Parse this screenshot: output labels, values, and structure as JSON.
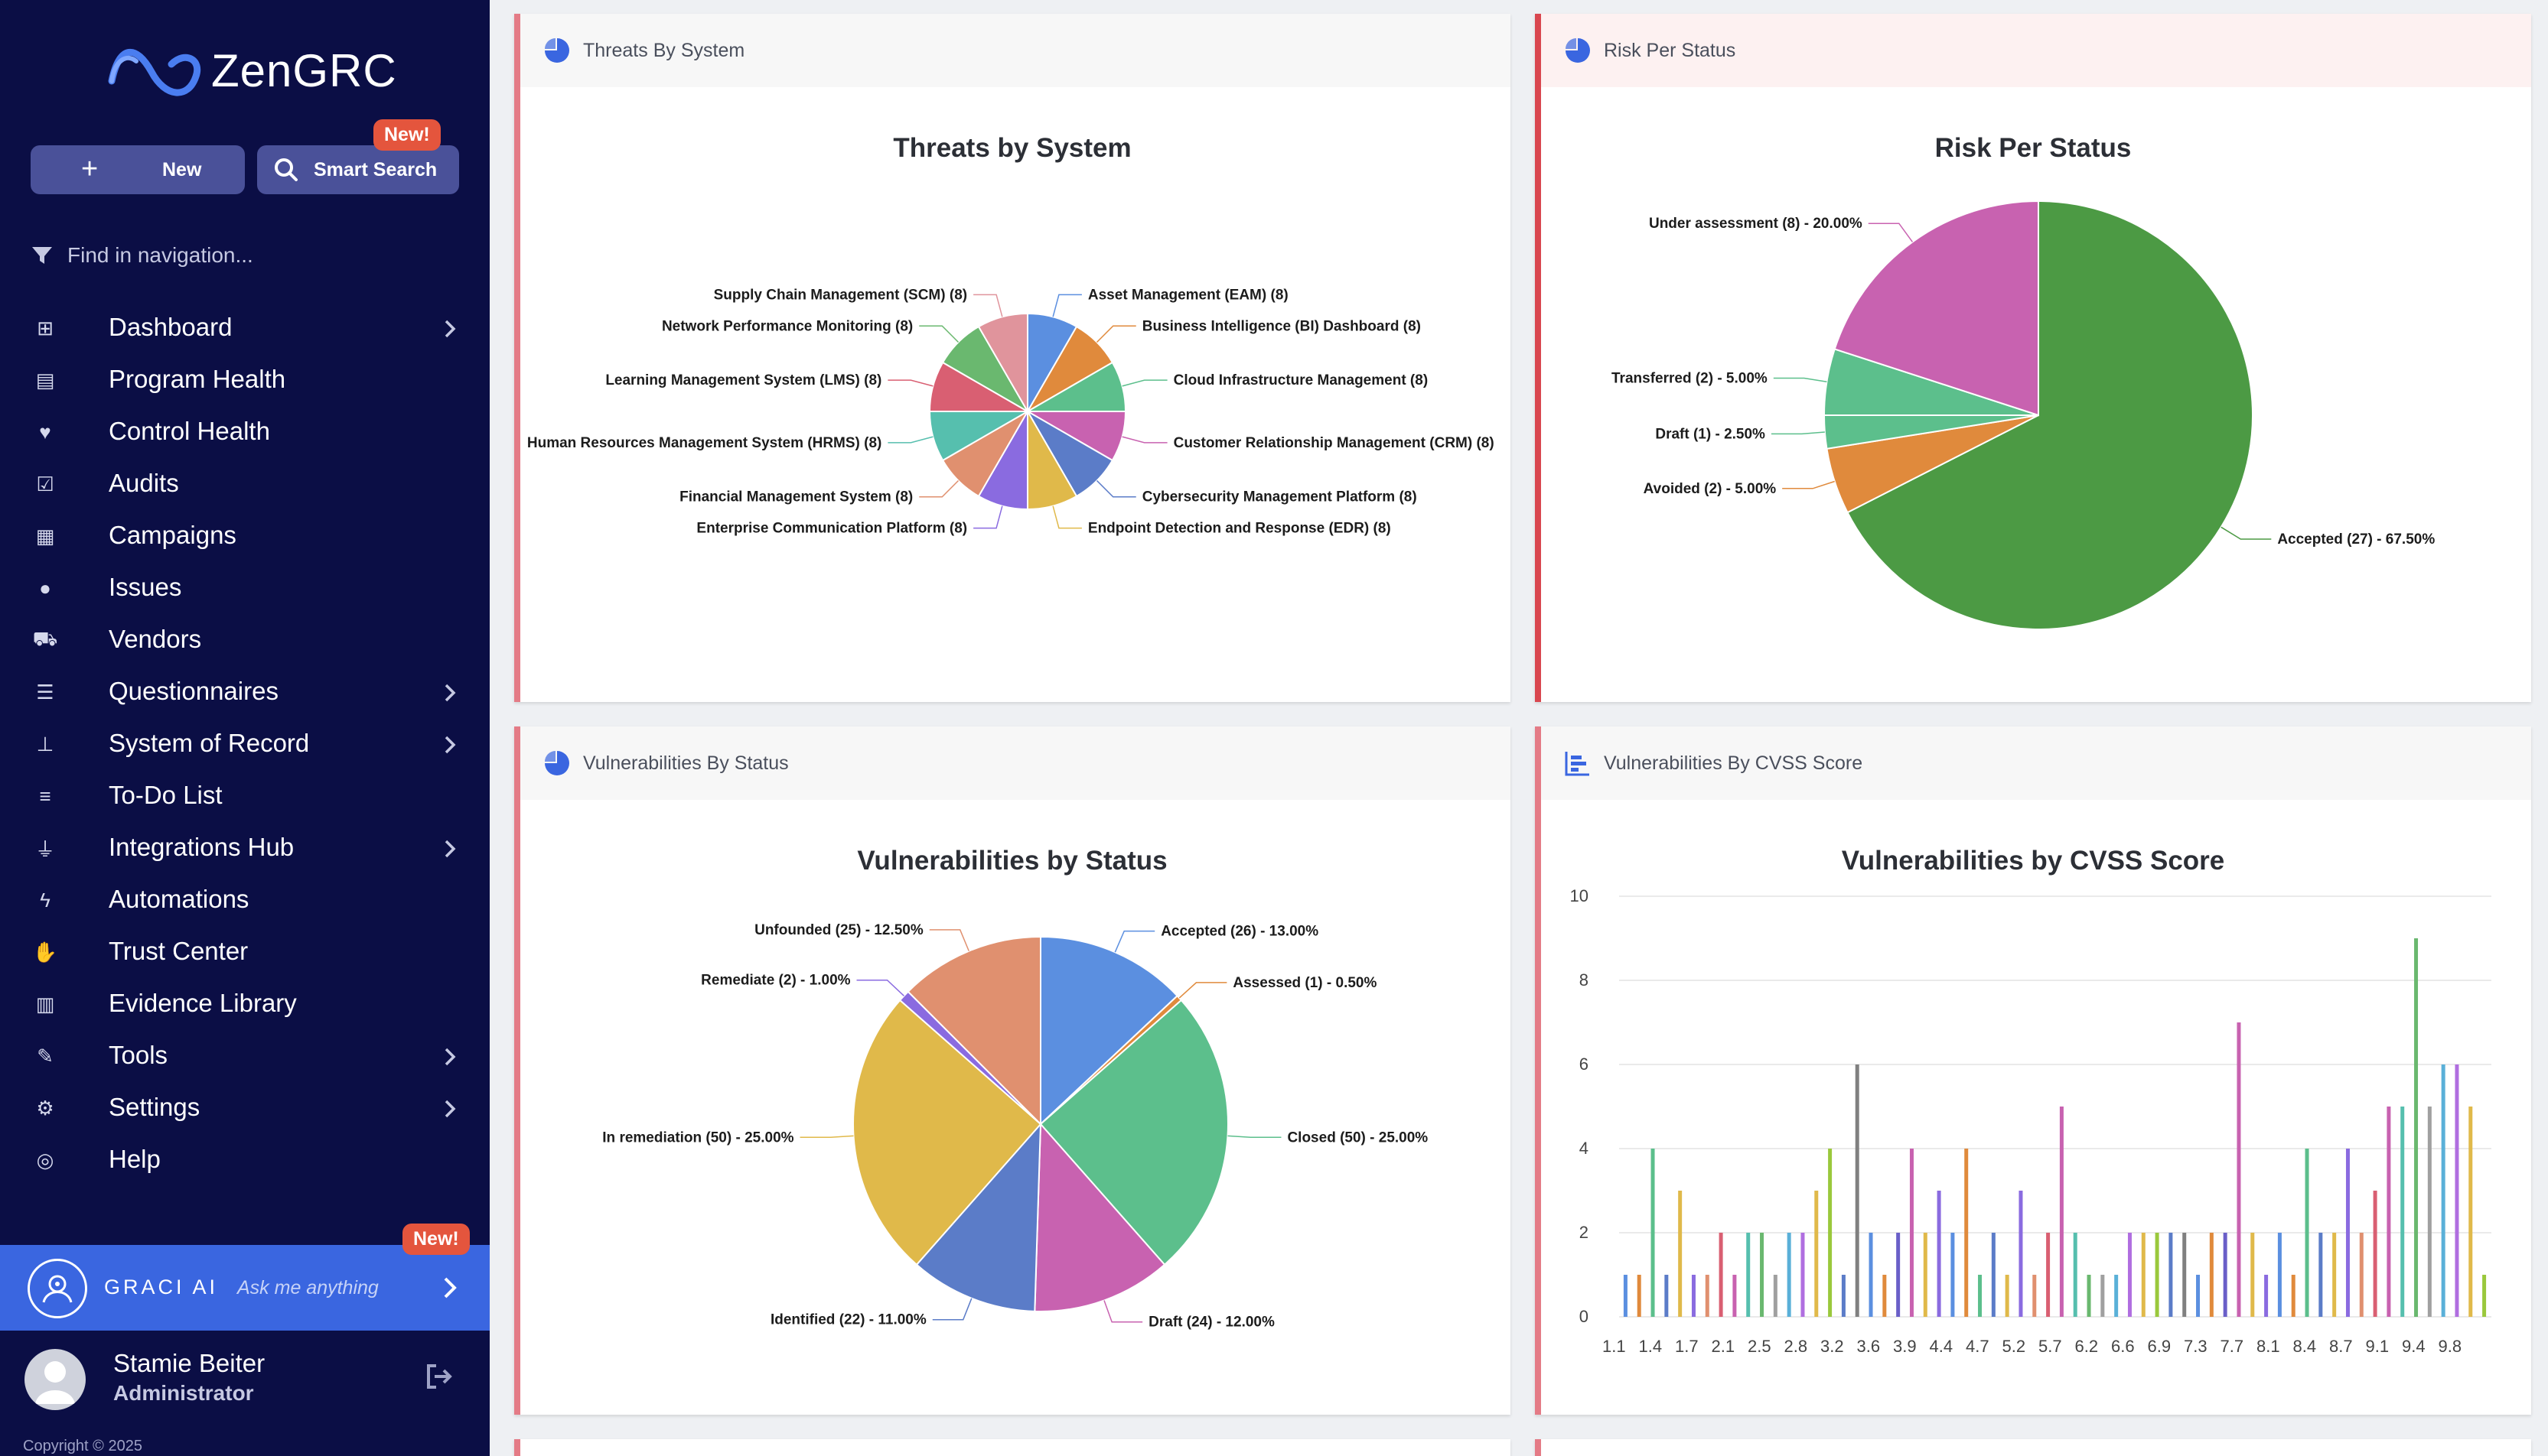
{
  "app": {
    "brand": "ZenGRC",
    "new_label": "New",
    "search_label": "Smart Search",
    "new_badge": "New!",
    "find_placeholder": "Find in navigation...",
    "nav": [
      {
        "label": "Dashboard",
        "icon": "grid-icon",
        "chevron": true
      },
      {
        "label": "Program Health",
        "icon": "file-icon",
        "chevron": false
      },
      {
        "label": "Control Health",
        "icon": "heart-pulse-icon",
        "chevron": false
      },
      {
        "label": "Audits",
        "icon": "check-square-icon",
        "chevron": false
      },
      {
        "label": "Campaigns",
        "icon": "table-icon",
        "chevron": false
      },
      {
        "label": "Issues",
        "icon": "alert-circle-icon",
        "chevron": false
      },
      {
        "label": "Vendors",
        "icon": "truck-icon",
        "chevron": false
      },
      {
        "label": "Questionnaires",
        "icon": "list-icon",
        "chevron": true
      },
      {
        "label": "System of Record",
        "icon": "sitemap-icon",
        "chevron": true
      },
      {
        "label": "To-Do List",
        "icon": "ordered-list-icon",
        "chevron": false
      },
      {
        "label": "Integrations Hub",
        "icon": "plug-icon",
        "chevron": true
      },
      {
        "label": "Automations",
        "icon": "bolt-icon",
        "chevron": false
      },
      {
        "label": "Trust Center",
        "icon": "handshake-icon",
        "chevron": false
      },
      {
        "label": "Evidence Library",
        "icon": "library-icon",
        "chevron": false
      },
      {
        "label": "Tools",
        "icon": "wrench-icon",
        "chevron": true
      },
      {
        "label": "Settings",
        "icon": "gear-icon",
        "chevron": true
      },
      {
        "label": "Help",
        "icon": "lifebuoy-icon",
        "chevron": false
      }
    ],
    "ai": {
      "name": "GRACI AI",
      "placeholder": "Ask me anything",
      "badge": "New!"
    },
    "user": {
      "name": "Stamie Beiter",
      "role": "Administrator"
    },
    "copyright": "Copyright © 2025"
  },
  "cards": {
    "threats": {
      "header": "Threats By System",
      "title": "Threats by System"
    },
    "risk": {
      "header": "Risk Per Status",
      "title": "Risk Per Status"
    },
    "vuln_status": {
      "header": "Vulnerabilities By Status",
      "title": "Vulnerabilities by Status"
    },
    "cvss": {
      "header": "Vulnerabilities By CVSS Score",
      "title": "Vulnerabilities by CVSS Score"
    }
  },
  "chart_data": [
    {
      "type": "pie",
      "title": "Threats by System",
      "labels": [
        "Asset Management (EAM) (8)",
        "Business Intelligence (BI) Dashboard (8)",
        "Cloud Infrastructure Management (8)",
        "Customer Relationship Management (CRM) (8)",
        "Cybersecurity Management Platform (8)",
        "Endpoint Detection and Response (EDR) (8)",
        "Enterprise Communication Platform (8)",
        "Financial Management System (8)",
        "Human Resources Management System (HRMS) (8)",
        "Learning Management System (LMS) (8)",
        "Network Performance Monitoring (8)",
        "Supply Chain Management (SCM) (8)"
      ],
      "values": [
        8,
        8,
        8,
        8,
        8,
        8,
        8,
        8,
        8,
        8,
        8,
        8
      ],
      "colors": [
        "#5b8fe0",
        "#e08a3c",
        "#5cbf8c",
        "#c862b0",
        "#5b7cc8",
        "#e0b94a",
        "#8a6be0",
        "#e0906f",
        "#56bfae",
        "#d95f72",
        "#6ab86f",
        "#e0949c"
      ]
    },
    {
      "type": "pie",
      "title": "Risk Per Status",
      "labels": [
        "Accepted (27) - 67.50%",
        "Avoided (2) - 5.00%",
        "Draft (1) - 2.50%",
        "Transferred (2) - 5.00%",
        "Under assessment (8) - 20.00%"
      ],
      "values": [
        27,
        2,
        1,
        2,
        8
      ],
      "colors": [
        "#4c9a44",
        "#e08a3c",
        "#5cbf8c",
        "#5cbf8c",
        "#c862b0"
      ]
    },
    {
      "type": "pie",
      "title": "Vulnerabilities by Status",
      "labels": [
        "Accepted (26) - 13.00%",
        "Assessed (1) - 0.50%",
        "Closed (50) - 25.00%",
        "Draft (24) - 12.00%",
        "Identified (22) - 11.00%",
        "In remediation (50) - 25.00%",
        "Remediate (2) - 1.00%",
        "Unfounded (25) - 12.50%"
      ],
      "values": [
        26,
        1,
        50,
        24,
        22,
        50,
        2,
        25
      ],
      "colors": [
        "#5b8fe0",
        "#e08a3c",
        "#5cbf8c",
        "#c862b0",
        "#5b7cc8",
        "#e0b94a",
        "#8a6be0",
        "#e0906f"
      ]
    },
    {
      "type": "bar",
      "title": "Vulnerabilities by CVSS Score",
      "ylim": [
        0,
        10
      ],
      "yticks": [
        0,
        2,
        4,
        6,
        8,
        10
      ],
      "xtick_labels": [
        "1.1",
        "1.4",
        "1.7",
        "2.1",
        "2.5",
        "2.8",
        "3.2",
        "3.6",
        "3.9",
        "4.4",
        "4.7",
        "5.2",
        "5.7",
        "6.2",
        "6.6",
        "6.9",
        "7.3",
        "7.7",
        "8.1",
        "8.4",
        "8.7",
        "9.1",
        "9.4",
        "9.8"
      ],
      "values": [
        1,
        1,
        4,
        1,
        3,
        1,
        1,
        2,
        1,
        2,
        2,
        1,
        2,
        2,
        3,
        4,
        1,
        6,
        2,
        1,
        2,
        4,
        2,
        3,
        2,
        4,
        1,
        2,
        1,
        3,
        1,
        2,
        5,
        2,
        1,
        1,
        1,
        2,
        2,
        2,
        2,
        2,
        1,
        2,
        2,
        7,
        2,
        1,
        2,
        1,
        4,
        2,
        2,
        4,
        2,
        3,
        5,
        5,
        9,
        5,
        6,
        6,
        5,
        1
      ],
      "colors": [
        "#5b8fe0",
        "#e08a3c",
        "#5cbf8c",
        "#5b7cc8",
        "#e0b94a",
        "#8a6be0",
        "#e0906f",
        "#d95f72",
        "#c862b0",
        "#56bfae",
        "#6ab86f",
        "#a0a0a0",
        "#5ab0d8",
        "#b06ee0",
        "#e0b94a",
        "#9ac83c",
        "#5b7cc8",
        "#808080",
        "#5b8fe0",
        "#e08a3c",
        "#6a5fc8",
        "#c862b0",
        "#e0b94a",
        "#8a6be0"
      ]
    }
  ]
}
